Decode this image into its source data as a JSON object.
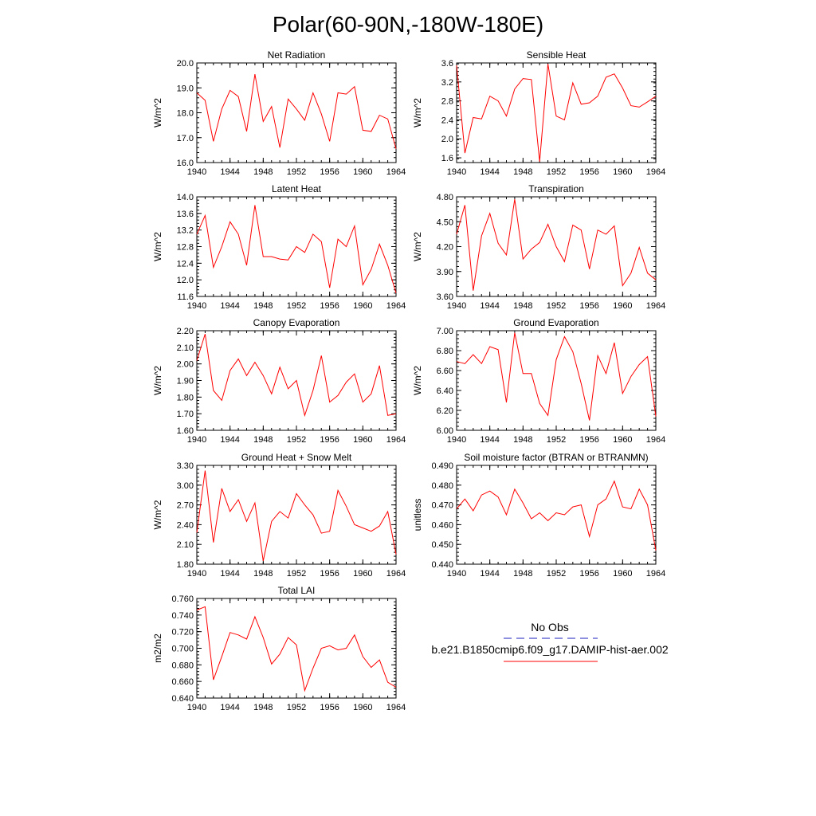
{
  "page": {
    "title": "Polar(60-90N,-180W-180E)"
  },
  "colors": {
    "series": "#ff0000",
    "obs": "#1f1fbf",
    "axis": "#000000"
  },
  "legend": {
    "obs_label": "No Obs",
    "model_label": "b.e21.B1850cmip6.f09_g17.DAMIP-hist-aer.002"
  },
  "chart_data": [
    {
      "type": "line",
      "title": "Net Radiation",
      "ylabel": "W/m^2",
      "xlim": [
        1940,
        1964
      ],
      "ylim": [
        16.0,
        20.0
      ],
      "xticks": [
        1940,
        1944,
        1948,
        1952,
        1956,
        1960,
        1964
      ],
      "yticks": [
        "16.0",
        "17.0",
        "18.0",
        "19.0",
        "20.0"
      ],
      "x": [
        1940,
        1941,
        1942,
        1943,
        1944,
        1945,
        1946,
        1947,
        1948,
        1949,
        1950,
        1951,
        1952,
        1953,
        1954,
        1955,
        1956,
        1957,
        1958,
        1959,
        1960,
        1961,
        1962,
        1963,
        1964
      ],
      "series": [
        {
          "name": "b.e21.B1850cmip6.f09_g17.DAMIP-hist-aer.002",
          "values": [
            18.8,
            18.5,
            16.85,
            18.15,
            18.9,
            18.65,
            17.25,
            19.55,
            17.65,
            18.25,
            16.6,
            18.55,
            18.15,
            17.7,
            18.8,
            17.95,
            16.85,
            18.8,
            18.75,
            19.05,
            17.3,
            17.25,
            17.9,
            17.75,
            16.55
          ]
        }
      ]
    },
    {
      "type": "line",
      "title": "Sensible Heat",
      "ylabel": "W/m^2",
      "xlim": [
        1940,
        1964
      ],
      "ylim": [
        1.5,
        3.6
      ],
      "xticks": [
        1940,
        1944,
        1948,
        1952,
        1956,
        1960,
        1964
      ],
      "yticks": [
        "1.6",
        "2.0",
        "2.4",
        "2.8",
        "3.2",
        "3.6"
      ],
      "x": [
        1940,
        1941,
        1942,
        1943,
        1944,
        1945,
        1946,
        1947,
        1948,
        1949,
        1950,
        1951,
        1952,
        1953,
        1954,
        1955,
        1956,
        1957,
        1958,
        1959,
        1960,
        1961,
        1962,
        1963,
        1964
      ],
      "series": [
        {
          "name": "b.e21.B1850cmip6.f09_g17.DAMIP-hist-aer.002",
          "values": [
            3.55,
            1.7,
            2.45,
            2.42,
            2.9,
            2.8,
            2.48,
            3.05,
            3.27,
            3.25,
            1.52,
            3.58,
            2.48,
            2.4,
            3.18,
            2.73,
            2.76,
            2.9,
            3.3,
            3.37,
            3.07,
            2.7,
            2.67,
            2.78,
            2.9
          ]
        }
      ]
    },
    {
      "type": "line",
      "title": "Latent Heat",
      "ylabel": "W/m^2",
      "xlim": [
        1940,
        1964
      ],
      "ylim": [
        11.6,
        14.0
      ],
      "xticks": [
        1940,
        1944,
        1948,
        1952,
        1956,
        1960,
        1964
      ],
      "yticks": [
        "11.6",
        "12.0",
        "12.4",
        "12.8",
        "13.2",
        "13.6",
        "14.0"
      ],
      "x": [
        1940,
        1941,
        1942,
        1943,
        1944,
        1945,
        1946,
        1947,
        1948,
        1949,
        1950,
        1951,
        1952,
        1953,
        1954,
        1955,
        1956,
        1957,
        1958,
        1959,
        1960,
        1961,
        1962,
        1963,
        1964
      ],
      "series": [
        {
          "name": "b.e21.B1850cmip6.f09_g17.DAMIP-hist-aer.002",
          "values": [
            13.1,
            13.55,
            12.3,
            12.8,
            13.4,
            13.1,
            12.35,
            13.8,
            12.56,
            12.56,
            12.5,
            12.48,
            12.8,
            12.66,
            13.1,
            12.92,
            11.81,
            12.98,
            12.8,
            13.3,
            11.88,
            12.25,
            12.86,
            12.35,
            11.68
          ]
        }
      ]
    },
    {
      "type": "line",
      "title": "Transpiration",
      "ylabel": "W/m^2",
      "xlim": [
        1940,
        1964
      ],
      "ylim": [
        3.6,
        4.8
      ],
      "xticks": [
        1940,
        1944,
        1948,
        1952,
        1956,
        1960,
        1964
      ],
      "yticks": [
        "3.60",
        "3.90",
        "4.20",
        "4.50",
        "4.80"
      ],
      "x": [
        1940,
        1941,
        1942,
        1943,
        1944,
        1945,
        1946,
        1947,
        1948,
        1949,
        1950,
        1951,
        1952,
        1953,
        1954,
        1955,
        1956,
        1957,
        1958,
        1959,
        1960,
        1961,
        1962,
        1963,
        1964
      ],
      "series": [
        {
          "name": "b.e21.B1850cmip6.f09_g17.DAMIP-hist-aer.002",
          "values": [
            4.35,
            4.7,
            3.67,
            4.33,
            4.6,
            4.24,
            4.1,
            4.77,
            4.05,
            4.17,
            4.25,
            4.47,
            4.2,
            4.02,
            4.46,
            4.4,
            3.93,
            4.4,
            4.35,
            4.45,
            3.73,
            3.88,
            4.19,
            3.88,
            3.8
          ]
        }
      ]
    },
    {
      "type": "line",
      "title": "Canopy Evaporation",
      "ylabel": "W/m^2",
      "xlim": [
        1940,
        1964
      ],
      "ylim": [
        1.6,
        2.2
      ],
      "xticks": [
        1940,
        1944,
        1948,
        1952,
        1956,
        1960,
        1964
      ],
      "yticks": [
        "1.60",
        "1.70",
        "1.80",
        "1.90",
        "2.00",
        "2.10",
        "2.20"
      ],
      "x": [
        1940,
        1941,
        1942,
        1943,
        1944,
        1945,
        1946,
        1947,
        1948,
        1949,
        1950,
        1951,
        1952,
        1953,
        1954,
        1955,
        1956,
        1957,
        1958,
        1959,
        1960,
        1961,
        1962,
        1963,
        1964
      ],
      "series": [
        {
          "name": "b.e21.B1850cmip6.f09_g17.DAMIP-hist-aer.002",
          "values": [
            2.02,
            2.18,
            1.84,
            1.78,
            1.96,
            2.03,
            1.93,
            2.01,
            1.93,
            1.82,
            1.98,
            1.85,
            1.9,
            1.69,
            1.84,
            2.05,
            1.77,
            1.81,
            1.89,
            1.94,
            1.77,
            1.82,
            1.99,
            1.69,
            1.7
          ]
        }
      ]
    },
    {
      "type": "line",
      "title": "Ground Evaporation",
      "ylabel": "W/m^2",
      "xlim": [
        1940,
        1964
      ],
      "ylim": [
        6.0,
        7.0
      ],
      "xticks": [
        1940,
        1944,
        1948,
        1952,
        1956,
        1960,
        1964
      ],
      "yticks": [
        "6.00",
        "6.20",
        "6.40",
        "6.60",
        "6.80",
        "7.00"
      ],
      "x": [
        1940,
        1941,
        1942,
        1943,
        1944,
        1945,
        1946,
        1947,
        1948,
        1949,
        1950,
        1951,
        1952,
        1953,
        1954,
        1955,
        1956,
        1957,
        1958,
        1959,
        1960,
        1961,
        1962,
        1963,
        1964
      ],
      "series": [
        {
          "name": "b.e21.B1850cmip6.f09_g17.DAMIP-hist-aer.002",
          "values": [
            6.69,
            6.67,
            6.76,
            6.67,
            6.84,
            6.81,
            6.28,
            6.98,
            6.57,
            6.57,
            6.27,
            6.15,
            6.71,
            6.94,
            6.79,
            6.47,
            6.1,
            6.75,
            6.57,
            6.88,
            6.37,
            6.54,
            6.66,
            6.74,
            6.14
          ]
        }
      ]
    },
    {
      "type": "line",
      "title": "Ground Heat + Snow Melt",
      "ylabel": "W/m^2",
      "xlim": [
        1940,
        1964
      ],
      "ylim": [
        1.8,
        3.3
      ],
      "xticks": [
        1940,
        1944,
        1948,
        1952,
        1956,
        1960,
        1964
      ],
      "yticks": [
        "1.80",
        "2.10",
        "2.40",
        "2.70",
        "3.00",
        "3.30"
      ],
      "x": [
        1940,
        1941,
        1942,
        1943,
        1944,
        1945,
        1946,
        1947,
        1948,
        1949,
        1950,
        1951,
        1952,
        1953,
        1954,
        1955,
        1956,
        1957,
        1958,
        1959,
        1960,
        1961,
        1962,
        1963,
        1964
      ],
      "series": [
        {
          "name": "b.e21.B1850cmip6.f09_g17.DAMIP-hist-aer.002",
          "values": [
            2.28,
            3.22,
            2.13,
            2.95,
            2.6,
            2.78,
            2.45,
            2.73,
            1.85,
            2.45,
            2.6,
            2.5,
            2.87,
            2.7,
            2.55,
            2.27,
            2.3,
            2.92,
            2.68,
            2.4,
            2.35,
            2.3,
            2.38,
            2.6,
            1.95
          ]
        }
      ]
    },
    {
      "type": "line",
      "title": "Soil moisture factor (BTRAN or BTRANMN)",
      "ylabel": "unitless",
      "xlim": [
        1940,
        1964
      ],
      "ylim": [
        0.44,
        0.49
      ],
      "xticks": [
        1940,
        1944,
        1948,
        1952,
        1956,
        1960,
        1964
      ],
      "yticks": [
        "0.440",
        "0.450",
        "0.460",
        "0.470",
        "0.480",
        "0.490"
      ],
      "x": [
        1940,
        1941,
        1942,
        1943,
        1944,
        1945,
        1946,
        1947,
        1948,
        1949,
        1950,
        1951,
        1952,
        1953,
        1954,
        1955,
        1956,
        1957,
        1958,
        1959,
        1960,
        1961,
        1962,
        1963,
        1964
      ],
      "series": [
        {
          "name": "b.e21.B1850cmip6.f09_g17.DAMIP-hist-aer.002",
          "values": [
            0.468,
            0.473,
            0.467,
            0.475,
            0.477,
            0.474,
            0.465,
            0.478,
            0.471,
            0.463,
            0.466,
            0.462,
            0.466,
            0.465,
            0.469,
            0.47,
            0.454,
            0.47,
            0.473,
            0.482,
            0.469,
            0.468,
            0.478,
            0.47,
            0.447
          ]
        }
      ]
    },
    {
      "type": "line",
      "title": "Total LAI",
      "ylabel": "m2/m2",
      "xlim": [
        1940,
        1964
      ],
      "ylim": [
        0.64,
        0.76
      ],
      "xticks": [
        1940,
        1944,
        1948,
        1952,
        1956,
        1960,
        1964
      ],
      "yticks": [
        "0.640",
        "0.660",
        "0.680",
        "0.700",
        "0.720",
        "0.740",
        "0.760"
      ],
      "x": [
        1940,
        1941,
        1942,
        1943,
        1944,
        1945,
        1946,
        1947,
        1948,
        1949,
        1950,
        1951,
        1952,
        1953,
        1954,
        1955,
        1956,
        1957,
        1958,
        1959,
        1960,
        1961,
        1962,
        1963,
        1964
      ],
      "series": [
        {
          "name": "b.e21.B1850cmip6.f09_g17.DAMIP-hist-aer.002",
          "values": [
            0.746,
            0.75,
            0.662,
            0.69,
            0.719,
            0.716,
            0.711,
            0.738,
            0.713,
            0.681,
            0.693,
            0.713,
            0.704,
            0.649,
            0.676,
            0.7,
            0.703,
            0.698,
            0.7,
            0.716,
            0.69,
            0.677,
            0.686,
            0.659,
            0.653
          ]
        }
      ]
    }
  ]
}
